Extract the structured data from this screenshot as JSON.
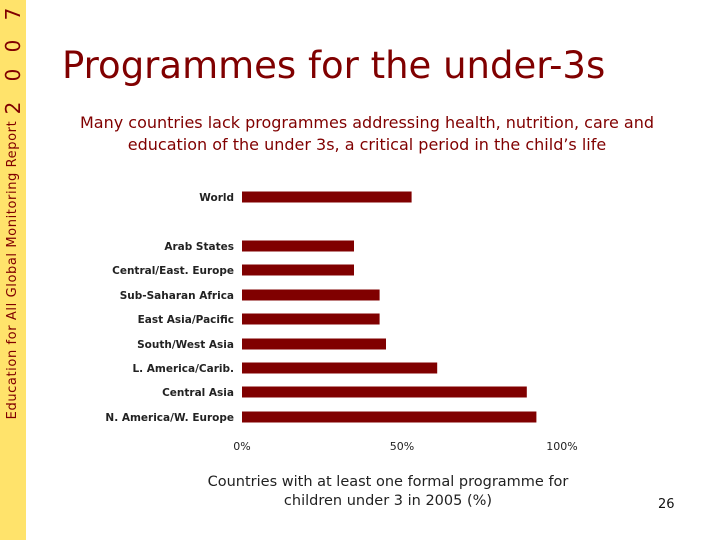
{
  "sidebar": {
    "text": "Education for All Global Monitoring Report",
    "year_digits": [
      "7",
      "0",
      "0",
      "2"
    ]
  },
  "slide": {
    "title": "Programmes for the under-3s",
    "subtitle": "Many countries lack programmes addressing health, nutrition, care and education of the under 3s, a critical period in the child’s life",
    "footnote": "Countries with at least one formal programme for children under 3 in 2005 (%)",
    "page_number": "26"
  },
  "colors": {
    "accent": "#800000",
    "bar": "#800000",
    "sidebar": "#ffe36b"
  },
  "chart_data": {
    "type": "bar",
    "orientation": "horizontal",
    "categories": [
      "World",
      "Arab States",
      "Central/East. Europe",
      "Sub-Saharan Africa",
      "East Asia/Pacific",
      "South/West Asia",
      "L. America/Carib.",
      "Central Asia",
      "N. America/W. Europe"
    ],
    "values": [
      53,
      35,
      35,
      43,
      43,
      45,
      61,
      89,
      92
    ],
    "xlim": [
      0,
      100
    ],
    "xticks": [
      "0%",
      "50%",
      "100%"
    ],
    "xlabel": "Countries with at least one formal programme for children under 3 in 2005 (%)",
    "grid": false
  }
}
